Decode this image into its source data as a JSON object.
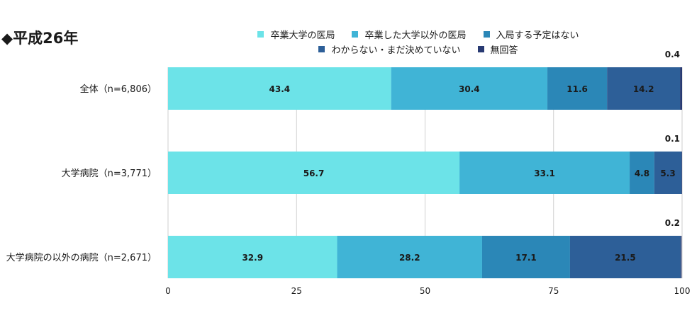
{
  "heading": "◆平成26年",
  "colors": {
    "series": [
      "#6ce3e8",
      "#40b4d6",
      "#2b87b7",
      "#2d5f98",
      "#283a72"
    ],
    "grid": "#cfcfcf"
  },
  "chart_data": {
    "type": "bar",
    "orientation": "horizontal",
    "stacked": true,
    "categories": [
      "全体（n=6,806）",
      "大学病院（n=3,771）",
      "大学病院の以外の病院（n=2,671）"
    ],
    "series": [
      {
        "name": "卒業大学の医局",
        "values": [
          43.4,
          56.7,
          32.9
        ]
      },
      {
        "name": "卒業した大学以外の医局",
        "values": [
          30.4,
          33.1,
          28.2
        ]
      },
      {
        "name": "入局する予定はない",
        "values": [
          11.6,
          4.8,
          17.1
        ]
      },
      {
        "name": "わからない・まだ決めていない",
        "values": [
          14.2,
          5.3,
          21.5
        ]
      },
      {
        "name": "無回答",
        "values": [
          0.4,
          0.1,
          0.2
        ]
      }
    ],
    "xlim": [
      0,
      100
    ],
    "xticks": [
      "0",
      "25",
      "50",
      "75",
      "100"
    ],
    "data_labels": [
      [
        "43.4",
        "30.4",
        "11.6",
        "14.2",
        "0.4"
      ],
      [
        "56.7",
        "33.1",
        "4.8",
        "5.3",
        "0.1"
      ],
      [
        "32.9",
        "28.2",
        "17.1",
        "21.5",
        "0.2"
      ]
    ],
    "grid": true,
    "legend_position": "top"
  }
}
